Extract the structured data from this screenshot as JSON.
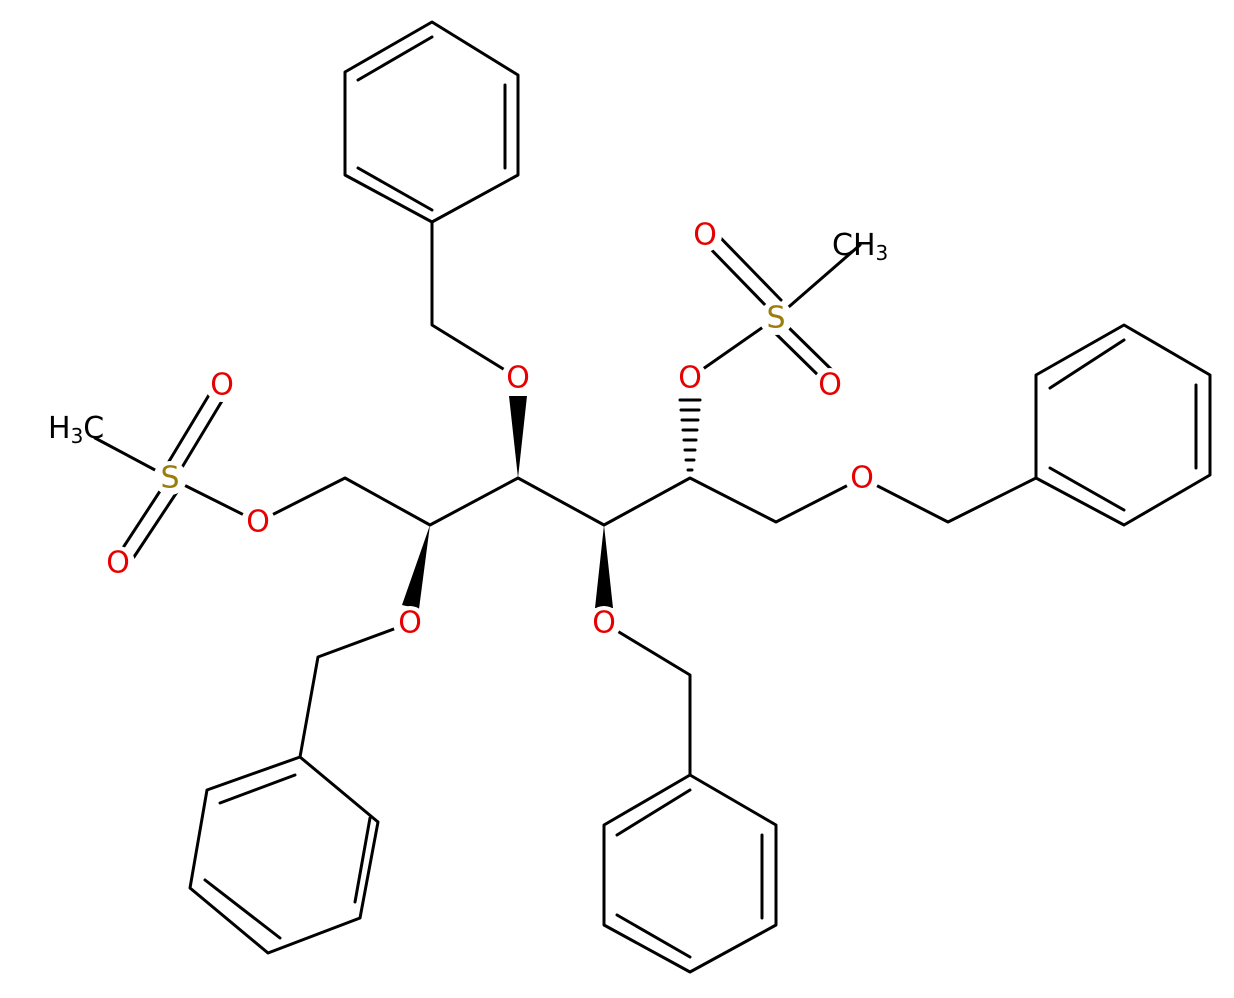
{
  "atoms": [
    "O",
    "O",
    "O",
    "O",
    "O",
    "O",
    "O",
    "O",
    "O",
    "O",
    "S",
    "S"
  ],
  "methyls": [
    {
      "parts": [
        "H",
        "3",
        "C"
      ]
    },
    {
      "parts": [
        "C",
        "H",
        "3"
      ]
    }
  ]
}
